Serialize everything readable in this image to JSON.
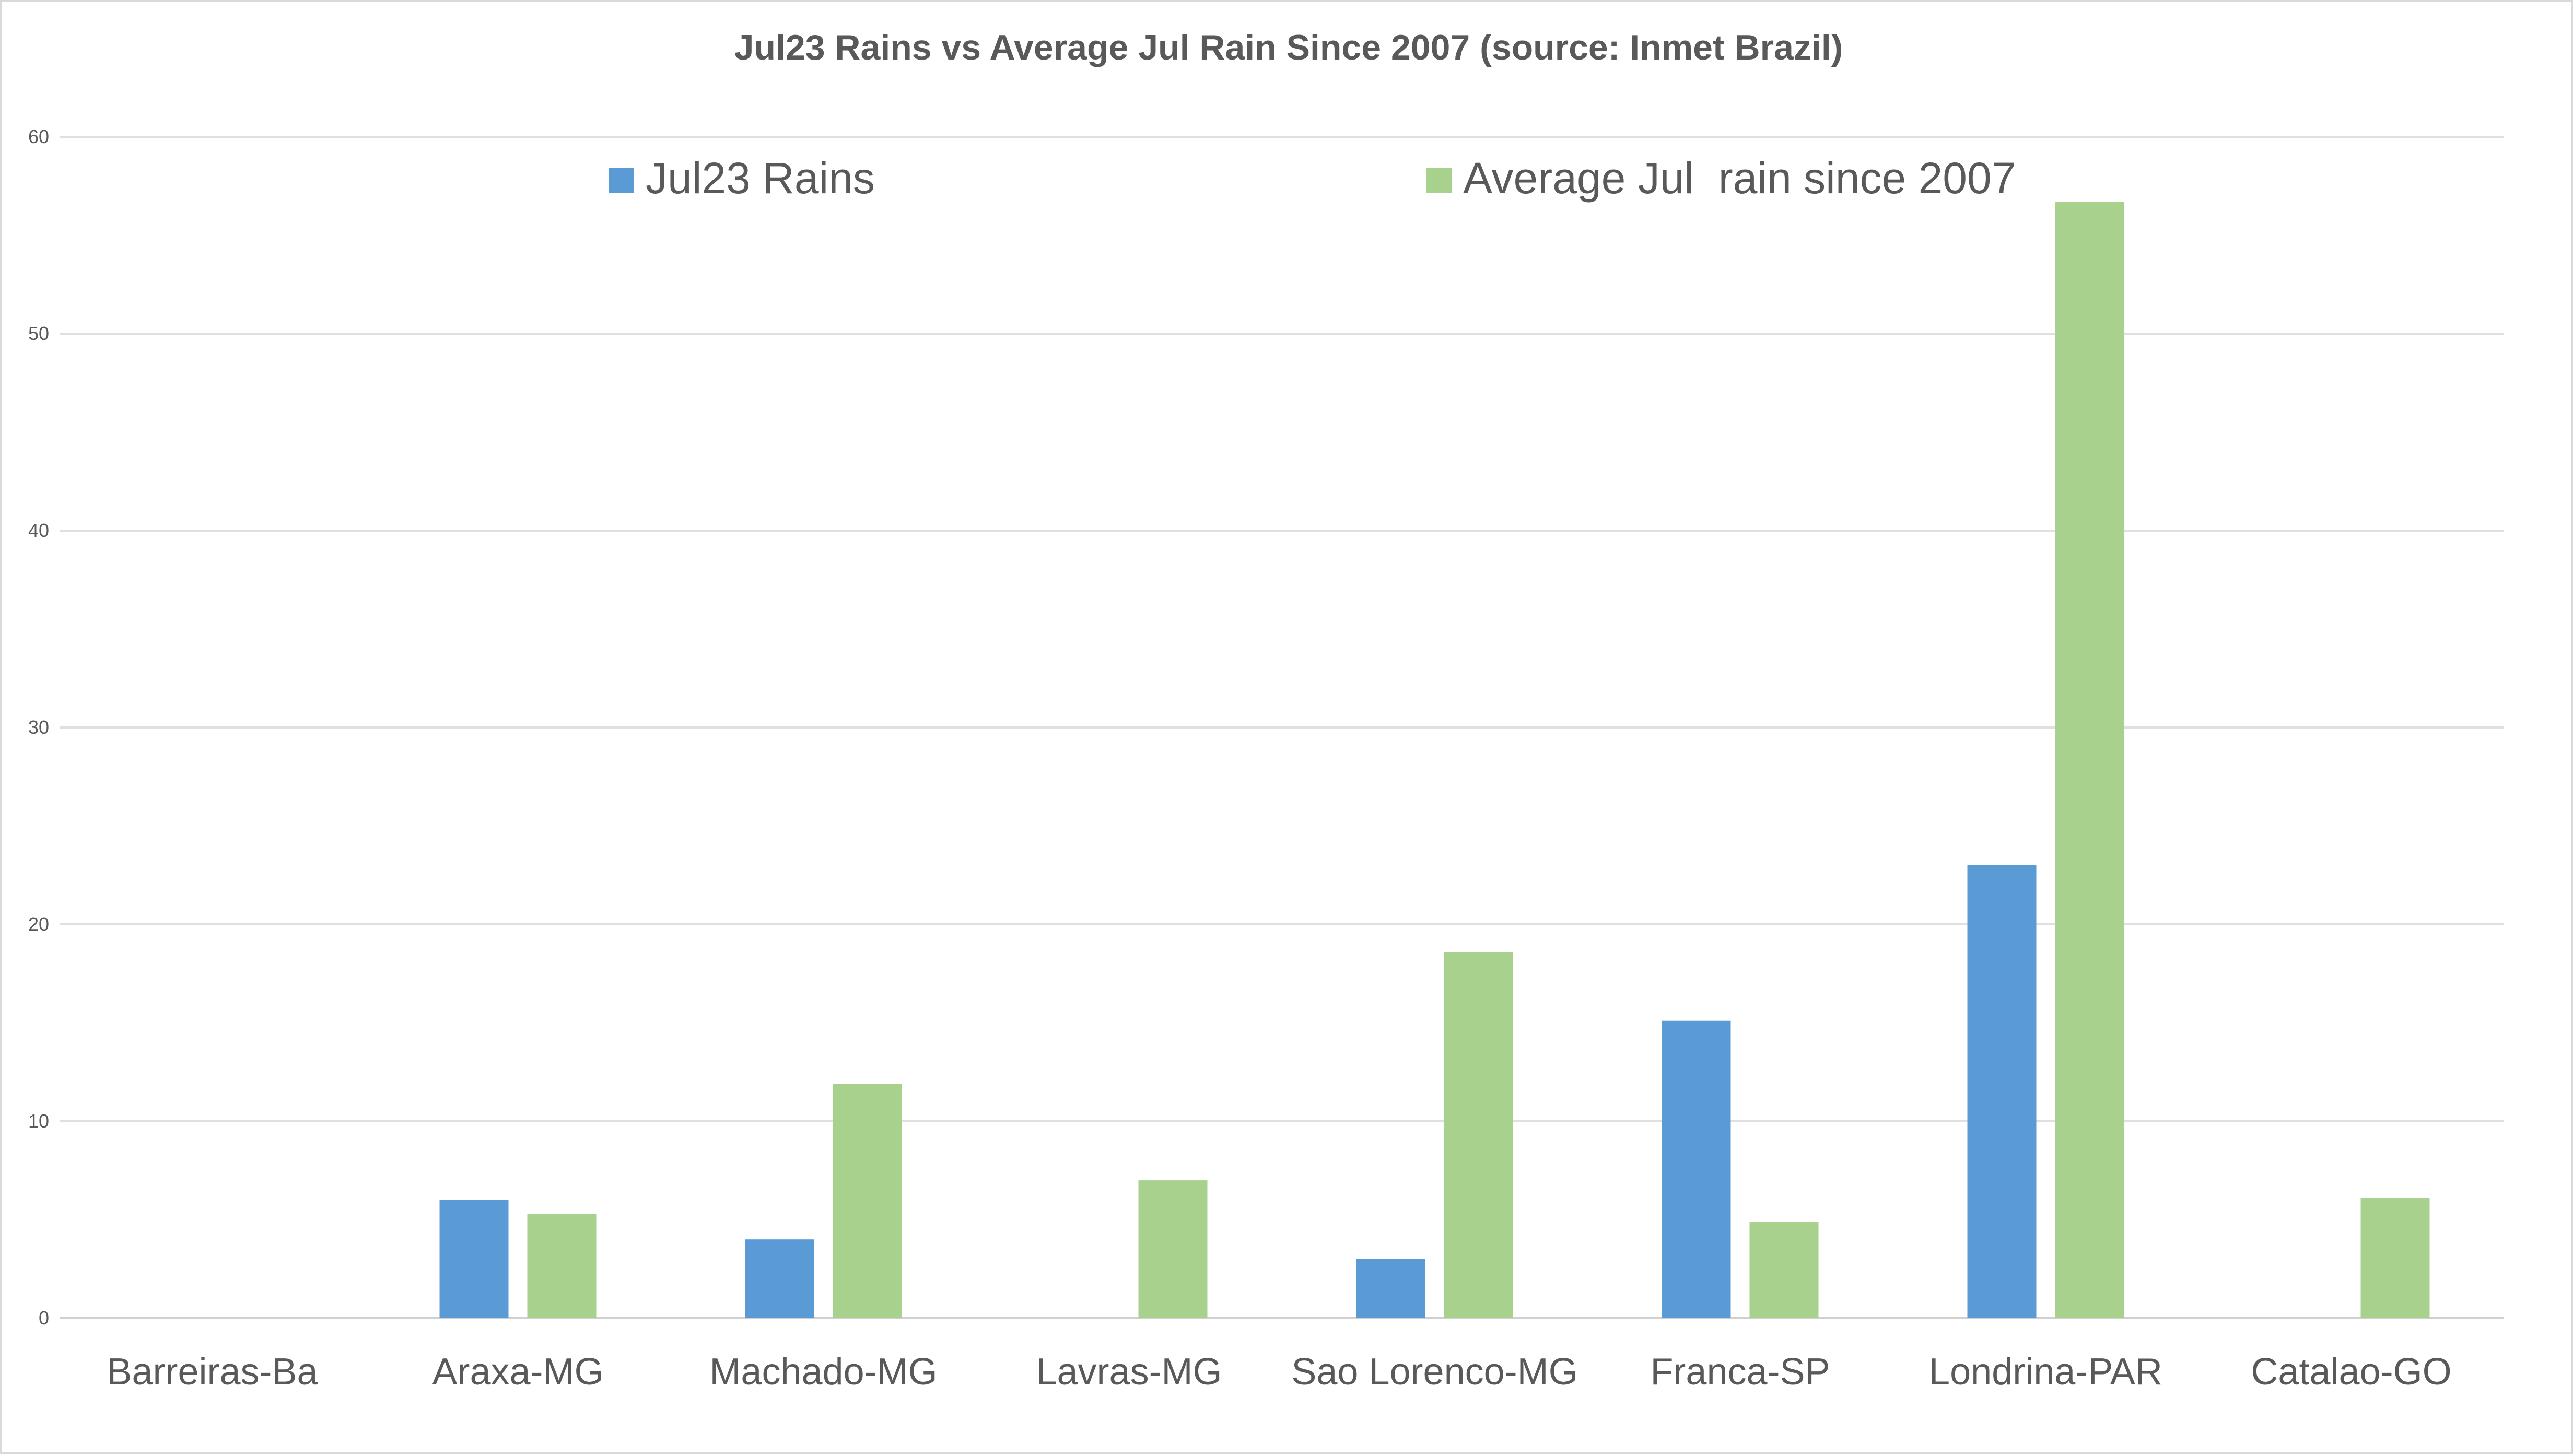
{
  "chart_data": {
    "type": "bar",
    "title": "Jul23 Rains vs Average Jul Rain Since 2007 (source: Inmet Brazil)",
    "xlabel": "",
    "ylabel": "",
    "ylim": [
      0,
      60
    ],
    "yticks": [
      "0",
      "10",
      "20",
      "30",
      "40",
      "50",
      "60"
    ],
    "grid": true,
    "legend_position": "top",
    "categories": [
      "Barreiras-Ba",
      "Araxa-MG",
      "Machado-MG",
      "Lavras-MG",
      "Sao Lorenco-MG",
      "Franca-SP",
      "Londrina-PAR",
      "Catalao-GO"
    ],
    "series": [
      {
        "name": "Jul23 Rains",
        "color": "#5b9bd5",
        "values": [
          0,
          6,
          4,
          0,
          3,
          15.1,
          23,
          0
        ]
      },
      {
        "name": "Average Jul  rain since 2007",
        "color": "#a9d18e",
        "values": [
          0,
          5.3,
          11.9,
          7,
          18.6,
          4.9,
          56.7,
          6.1
        ]
      }
    ]
  }
}
